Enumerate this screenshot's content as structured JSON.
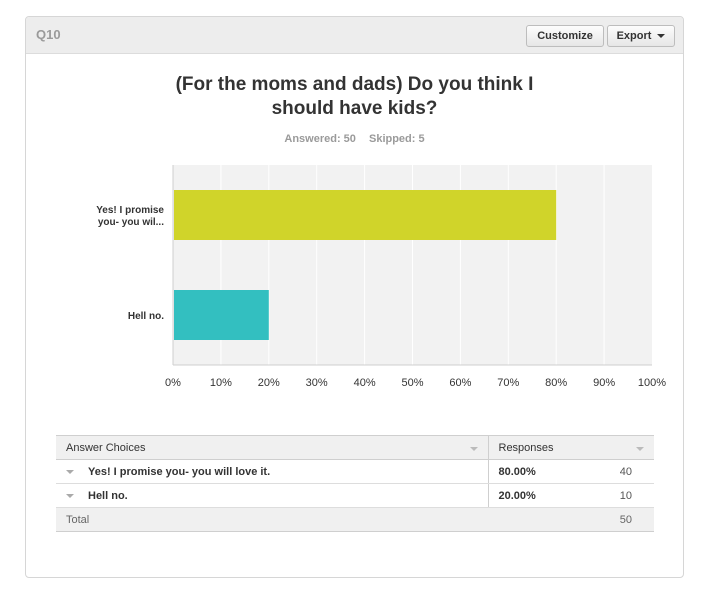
{
  "header": {
    "question_label": "Q10",
    "customize_label": "Customize",
    "export_label": "Export"
  },
  "question": {
    "title_line1": "(For the moms and dads) Do you think I",
    "title_line2": "should have kids?",
    "answered": "Answered: 50",
    "skipped": "Skipped: 5"
  },
  "chart_data": {
    "type": "bar",
    "orientation": "horizontal",
    "categories": [
      "Yes! I promise you- you will love it.",
      "Hell no."
    ],
    "category_labels": [
      [
        "Yes! I promise",
        "you- you wil..."
      ],
      [
        "Hell no."
      ]
    ],
    "values": [
      80,
      20
    ],
    "bar_colors": [
      "#d0d42a",
      "#33bfc0"
    ],
    "xlim": [
      0,
      100
    ],
    "xticks": [
      "0%",
      "10%",
      "20%",
      "30%",
      "40%",
      "50%",
      "60%",
      "70%",
      "80%",
      "90%",
      "100%"
    ],
    "grid": true,
    "xlabel": "",
    "ylabel": ""
  },
  "table": {
    "col_choices": "Answer Choices",
    "col_responses": "Responses",
    "rows": [
      {
        "choice": "Yes! I promise you- you will love it.",
        "pct": "80.00%",
        "count": "40"
      },
      {
        "choice": "Hell no.",
        "pct": "20.00%",
        "count": "10"
      }
    ],
    "total_label": "Total",
    "total_count": "50"
  },
  "colors": {
    "bar_yes": "#d0d42a",
    "bar_no": "#33bfc0",
    "plot_bg": "#f2f2f2"
  }
}
